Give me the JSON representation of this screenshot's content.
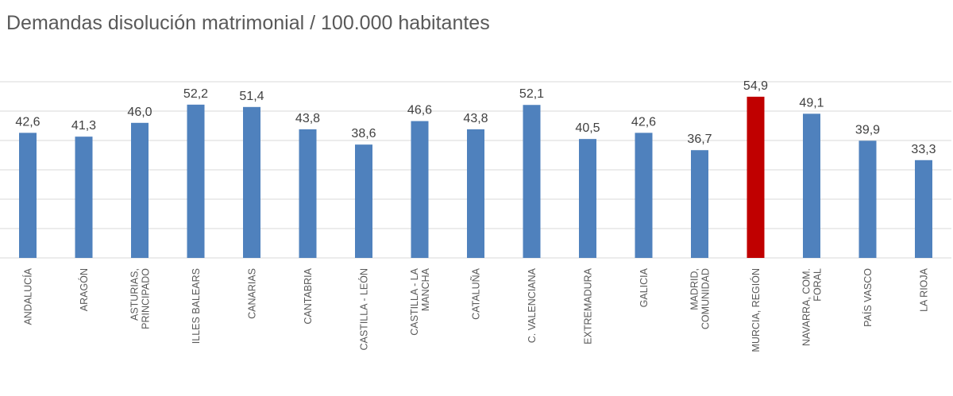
{
  "chart_data": {
    "type": "bar",
    "title": "Demandas disolución matrimonial / 100.000 habitantes",
    "xlabel": "",
    "ylabel": "",
    "ylim": [
      0,
      60
    ],
    "grid": true,
    "gridline_step": 10,
    "y_tick_labels_shown": false,
    "categories": [
      [
        "ANDALUCÍA"
      ],
      [
        "ARAGÓN"
      ],
      [
        "ASTURIAS,",
        "PRINCIPADO"
      ],
      [
        "ILLES BALEARS"
      ],
      [
        "CANARIAS"
      ],
      [
        "CANTABRIA"
      ],
      [
        "CASTILLA - LEÓN"
      ],
      [
        "CASTILLA - LA",
        "MANCHA"
      ],
      [
        "CATALUÑA"
      ],
      [
        "C. VALENCIANA"
      ],
      [
        "EXTREMADURA"
      ],
      [
        "GALICIA"
      ],
      [
        "MADRID,",
        "COMUNIDAD"
      ],
      [
        "MURCIA, REGIÓN"
      ],
      [
        "NAVARRA, COM.",
        "FORAL"
      ],
      [
        "PAÍS VASCO"
      ],
      [
        "LA RIOJA"
      ]
    ],
    "values": [
      42.6,
      41.3,
      46.0,
      52.2,
      51.4,
      43.8,
      38.6,
      46.6,
      43.8,
      52.1,
      40.5,
      42.6,
      36.7,
      54.9,
      49.1,
      39.9,
      33.3
    ],
    "data_labels": [
      "42,6",
      "41,3",
      "46,0",
      "52,2",
      "51,4",
      "43,8",
      "38,6",
      "46,6",
      "43,8",
      "52,1",
      "40,5",
      "42,6",
      "36,7",
      "54,9",
      "49,1",
      "39,9",
      "33,3"
    ],
    "highlight_index": 13,
    "colors": {
      "bar": "#4f81bd",
      "highlight": "#c00000",
      "grid": "#d9d9d9",
      "text": "#595959"
    }
  }
}
